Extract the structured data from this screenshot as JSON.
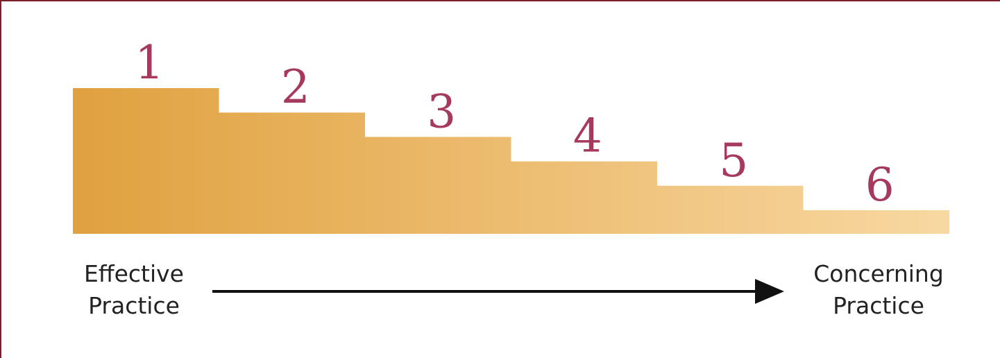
{
  "steps": [
    {
      "label": "1",
      "level": 6
    },
    {
      "label": "2",
      "level": 5
    },
    {
      "label": "3",
      "level": 4
    },
    {
      "label": "4",
      "level": 3
    },
    {
      "label": "5",
      "level": 2
    },
    {
      "label": "6",
      "level": 1
    }
  ],
  "left_label": {
    "line1": "Effective",
    "line2": "Practice"
  },
  "right_label": {
    "line1": "Concerning",
    "line2": "Practice"
  },
  "colors": {
    "step_dark": "#e0a13f",
    "step_light": "#f8d8a2",
    "number": "#a63a5c",
    "arrow": "#111111",
    "border": "#7a1f2b"
  }
}
